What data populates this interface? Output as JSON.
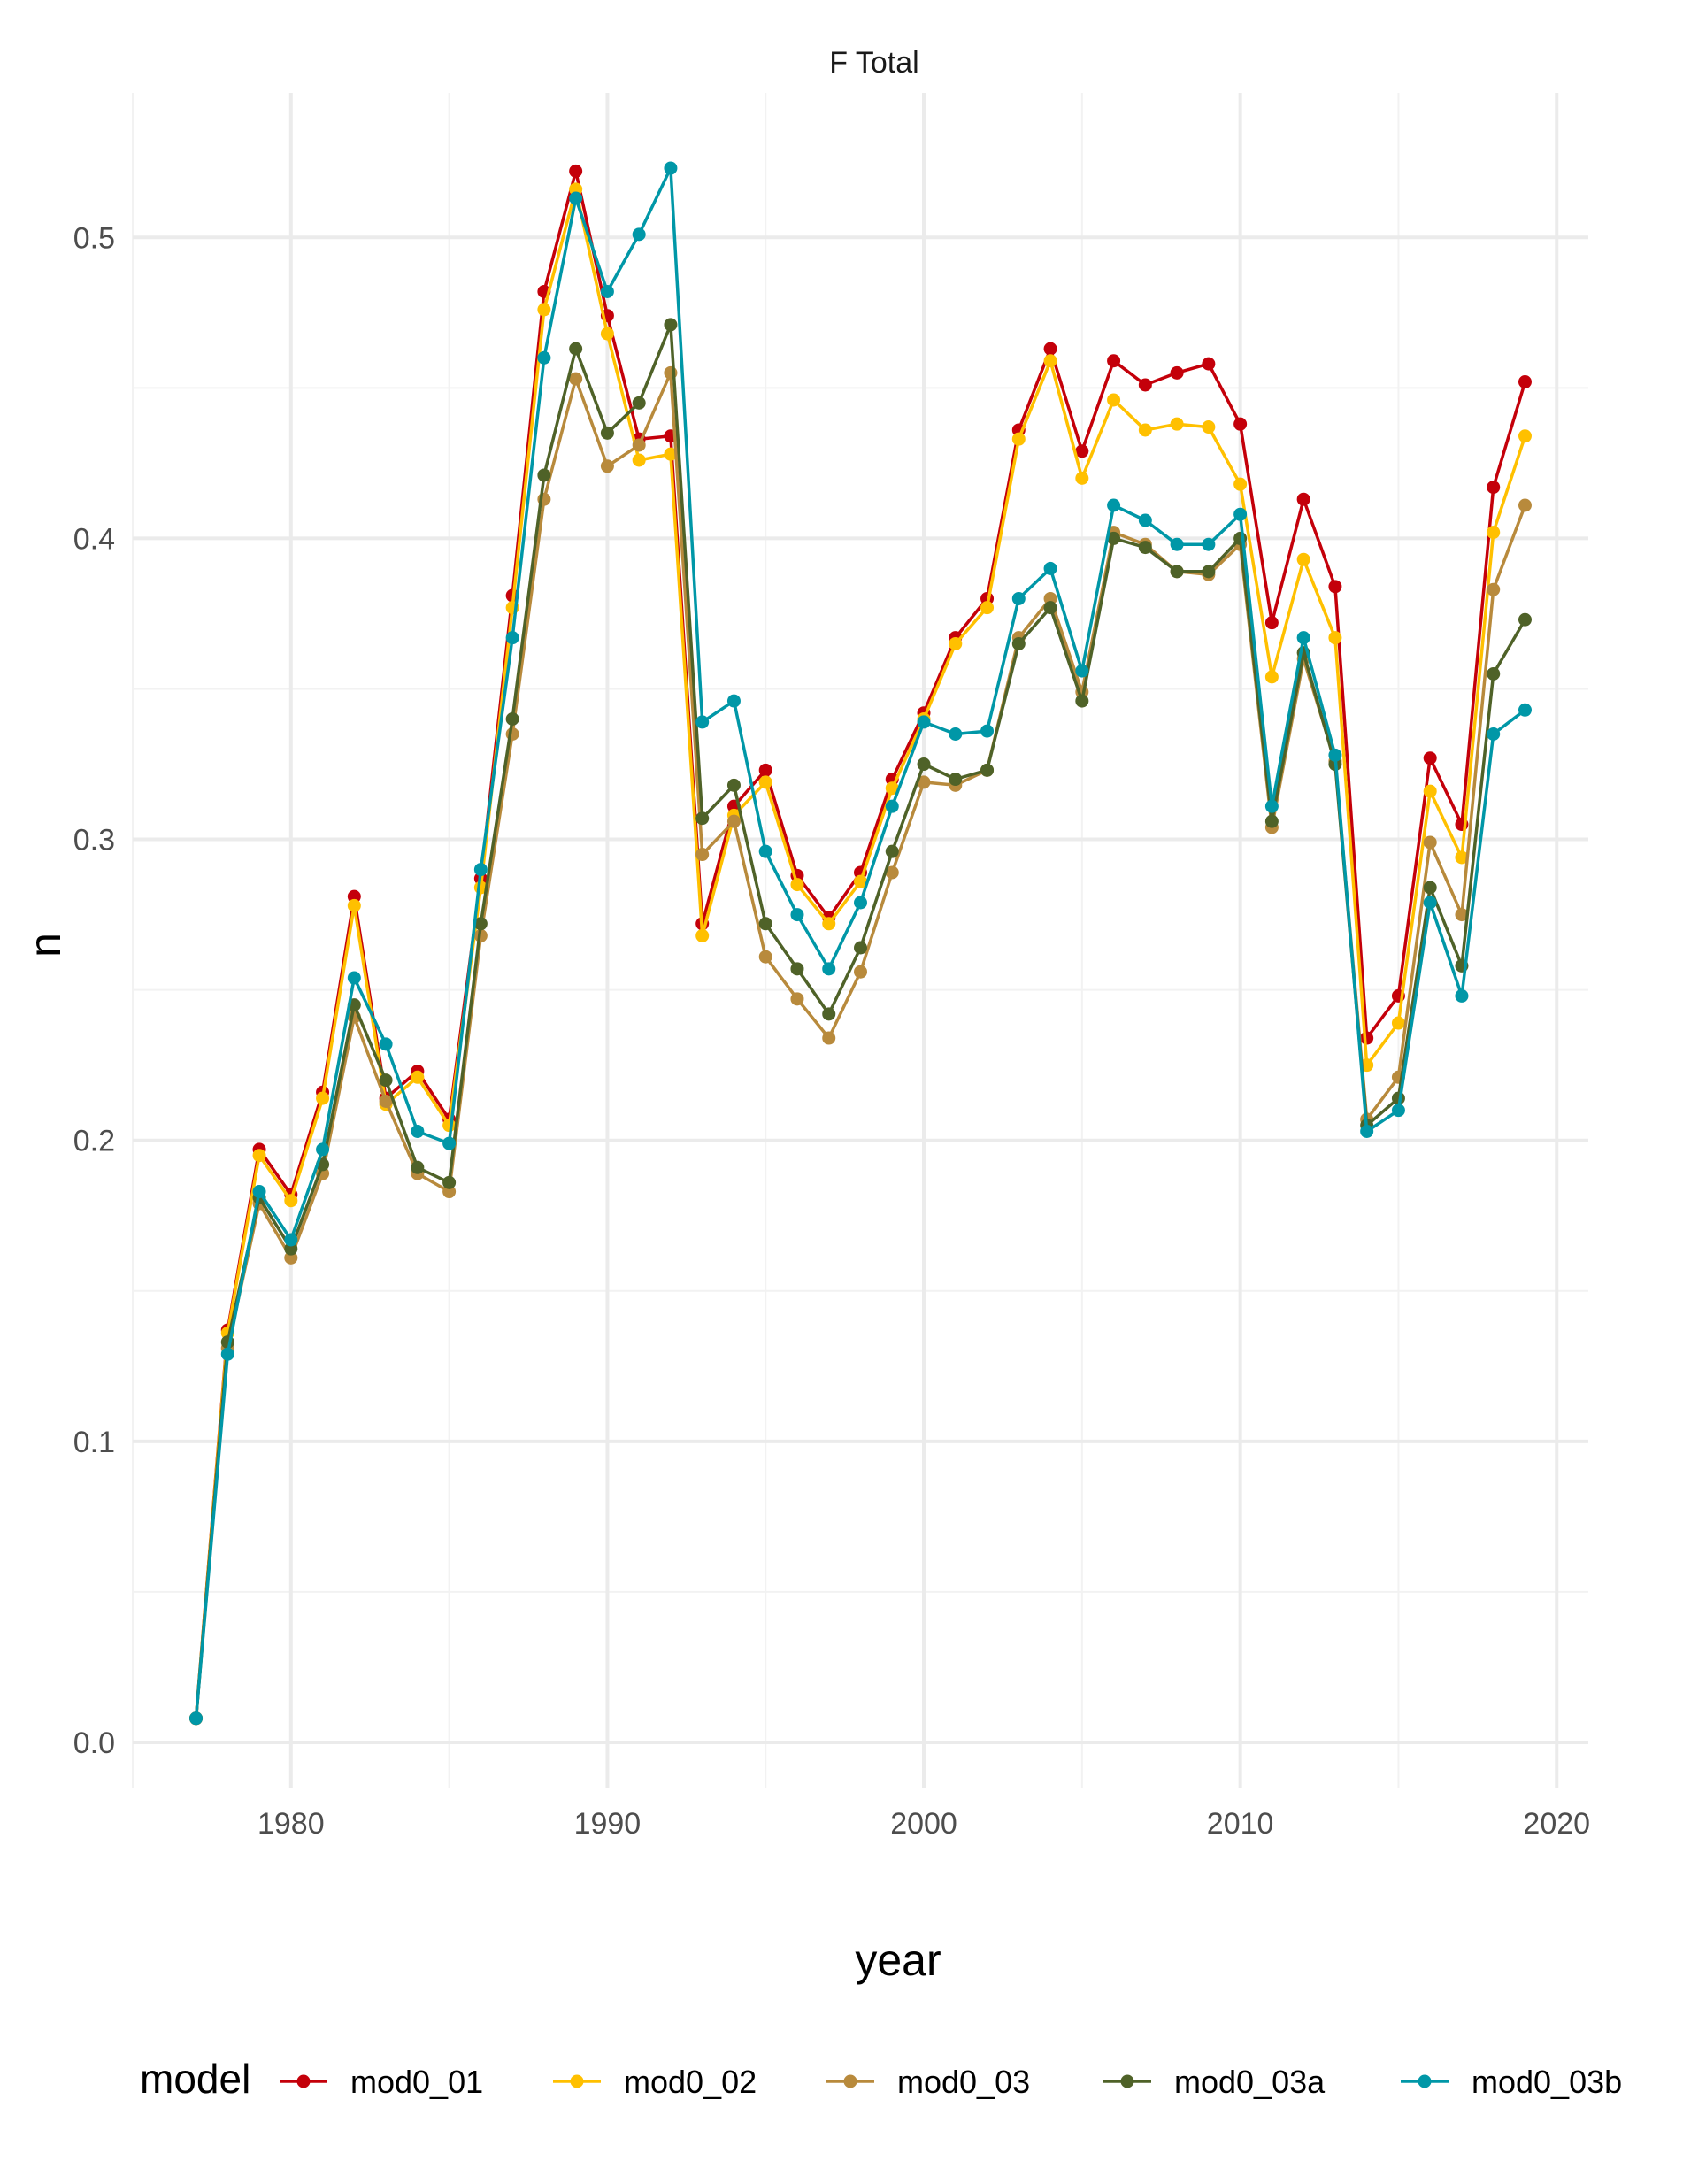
{
  "chart_data": {
    "type": "line",
    "title": "F Total",
    "xlabel": "year",
    "ylabel": "n",
    "xlim": [
      1975,
      2021
    ],
    "ylim": [
      -0.015,
      0.548
    ],
    "x_ticks": [
      1980,
      1990,
      2000,
      2010,
      2020
    ],
    "x_minor_ticks": [
      1975,
      1985,
      1995,
      2005,
      2015
    ],
    "y_ticks": [
      0.0,
      0.1,
      0.2,
      0.3,
      0.4,
      0.5
    ],
    "y_tick_labels": [
      "0.0",
      "0.1",
      "0.2",
      "0.3",
      "0.4",
      "0.5"
    ],
    "y_minor_ticks": [
      0.05,
      0.15,
      0.25,
      0.35,
      0.45
    ],
    "grid": true,
    "legend_title": "model",
    "legend_position": "bottom",
    "x": [
      1977,
      1978,
      1979,
      1980,
      1981,
      1982,
      1983,
      1984,
      1985,
      1986,
      1987,
      1988,
      1989,
      1990,
      1991,
      1992,
      1993,
      1994,
      1995,
      1996,
      1997,
      1998,
      1999,
      2000,
      2001,
      2002,
      2003,
      2004,
      2005,
      2006,
      2007,
      2008,
      2009,
      2010,
      2011,
      2012,
      2013,
      2014,
      2015,
      2016,
      2017,
      2018,
      2019
    ],
    "series": [
      {
        "name": "mod0_01",
        "color": "#c4000a",
        "values": [
          0.008,
          0.137,
          0.197,
          0.182,
          0.216,
          0.281,
          0.214,
          0.223,
          0.207,
          0.287,
          0.381,
          0.482,
          0.522,
          0.474,
          0.433,
          0.434,
          0.272,
          0.311,
          0.323,
          0.288,
          0.274,
          0.289,
          0.32,
          0.342,
          0.367,
          0.38,
          0.436,
          0.463,
          0.429,
          0.459,
          0.451,
          0.455,
          0.458,
          0.438,
          0.372,
          0.413,
          0.384,
          0.234,
          0.248,
          0.327,
          0.305,
          0.417,
          0.452
        ]
      },
      {
        "name": "mod0_02",
        "color": "#ffc000",
        "values": [
          0.008,
          0.136,
          0.195,
          0.18,
          0.214,
          0.278,
          0.212,
          0.221,
          0.205,
          0.284,
          0.377,
          0.476,
          0.516,
          0.468,
          0.426,
          0.428,
          0.268,
          0.308,
          0.319,
          0.285,
          0.272,
          0.286,
          0.317,
          0.34,
          0.365,
          0.377,
          0.433,
          0.459,
          0.42,
          0.446,
          0.436,
          0.438,
          0.437,
          0.418,
          0.354,
          0.393,
          0.367,
          0.225,
          0.239,
          0.316,
          0.294,
          0.402,
          0.434
        ]
      },
      {
        "name": "mod0_03",
        "color": "#b88a3c",
        "values": [
          0.008,
          0.131,
          0.179,
          0.161,
          0.189,
          0.241,
          0.213,
          0.189,
          0.183,
          0.268,
          0.335,
          0.413,
          0.453,
          0.424,
          0.431,
          0.455,
          0.295,
          0.306,
          0.261,
          0.247,
          0.234,
          0.256,
          0.289,
          0.319,
          0.318,
          0.323,
          0.367,
          0.38,
          0.349,
          0.402,
          0.398,
          0.389,
          0.388,
          0.398,
          0.304,
          0.36,
          0.326,
          0.207,
          0.221,
          0.299,
          0.275,
          0.383,
          0.411
        ]
      },
      {
        "name": "mod0_03a",
        "color": "#4f6228",
        "values": [
          0.008,
          0.133,
          0.181,
          0.164,
          0.192,
          0.245,
          0.22,
          0.191,
          0.186,
          0.272,
          0.34,
          0.421,
          0.463,
          0.435,
          0.445,
          0.471,
          0.307,
          0.318,
          0.272,
          0.257,
          0.242,
          0.264,
          0.296,
          0.325,
          0.32,
          0.323,
          0.365,
          0.377,
          0.346,
          0.4,
          0.397,
          0.389,
          0.389,
          0.4,
          0.306,
          0.362,
          0.325,
          0.205,
          0.214,
          0.284,
          0.258,
          0.355,
          0.373
        ]
      },
      {
        "name": "mod0_03b",
        "color": "#0097a7",
        "values": [
          0.008,
          0.129,
          0.183,
          0.167,
          0.197,
          0.254,
          0.232,
          0.203,
          0.199,
          0.29,
          0.367,
          0.46,
          0.513,
          0.482,
          0.501,
          0.523,
          0.339,
          0.346,
          0.296,
          0.275,
          0.257,
          0.279,
          0.311,
          0.339,
          0.335,
          0.336,
          0.38,
          0.39,
          0.356,
          0.411,
          0.406,
          0.398,
          0.398,
          0.408,
          0.311,
          0.367,
          0.328,
          0.203,
          0.21,
          0.279,
          0.248,
          0.335,
          0.343
        ]
      }
    ]
  }
}
